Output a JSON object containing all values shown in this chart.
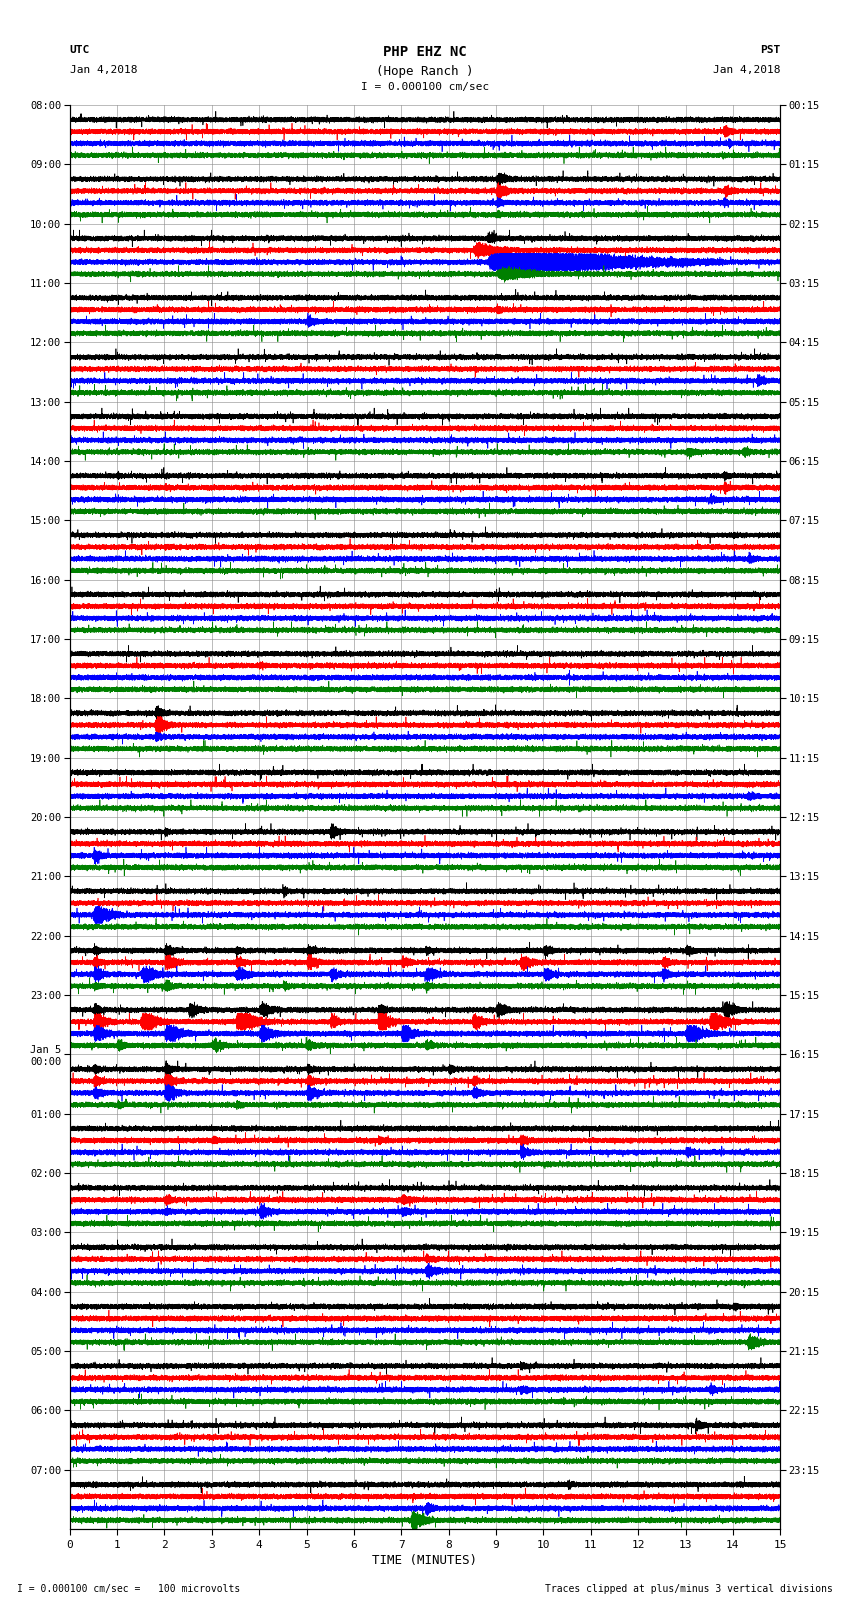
{
  "title_line1": "PHP EHZ NC",
  "title_line2": "(Hope Ranch )",
  "scale_label": "I = 0.000100 cm/sec",
  "utc_label": "UTC",
  "utc_date": "Jan 4,2018",
  "pst_label": "PST",
  "pst_date": "Jan 4,2018",
  "bottom_left": "I = 0.000100 cm/sec =   100 microvolts",
  "bottom_right": "Traces clipped at plus/minus 3 vertical divisions",
  "xlabel": "TIME (MINUTES)",
  "x_ticks": [
    0,
    1,
    2,
    3,
    4,
    5,
    6,
    7,
    8,
    9,
    10,
    11,
    12,
    13,
    14,
    15
  ],
  "utc_times_left": [
    "08:00",
    "09:00",
    "10:00",
    "11:00",
    "12:00",
    "13:00",
    "14:00",
    "15:00",
    "16:00",
    "17:00",
    "18:00",
    "19:00",
    "20:00",
    "21:00",
    "22:00",
    "23:00",
    "Jan 5\n00:00",
    "01:00",
    "02:00",
    "03:00",
    "04:00",
    "05:00",
    "06:00",
    "07:00"
  ],
  "pst_times_right": [
    "00:15",
    "01:15",
    "02:15",
    "03:15",
    "04:15",
    "05:15",
    "06:15",
    "07:15",
    "08:15",
    "09:15",
    "10:15",
    "11:15",
    "12:15",
    "13:15",
    "14:15",
    "15:15",
    "16:15",
    "17:15",
    "18:15",
    "19:15",
    "20:15",
    "21:15",
    "22:15",
    "23:15"
  ],
  "colors": [
    "black",
    "red",
    "blue",
    "green"
  ],
  "bg_color": "white",
  "grid_color": "#888888",
  "n_rows": 24,
  "n_traces_per_row": 4,
  "minutes": 15,
  "sample_rate": 50
}
